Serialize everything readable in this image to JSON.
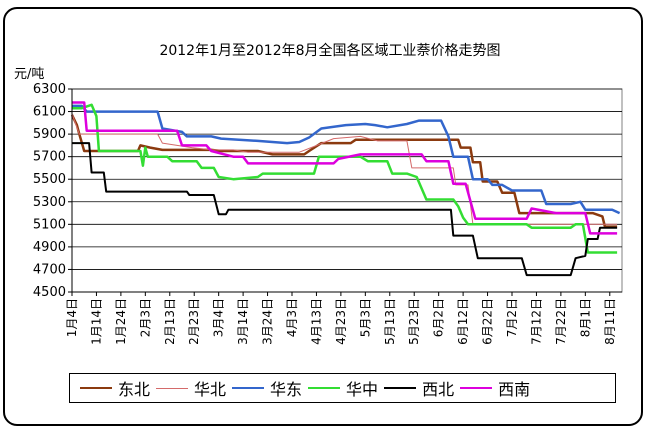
{
  "chart_data": {
    "type": "line",
    "title": "2012年1月至2012年8月全国各区域工业萘价格走势图",
    "ylabel": "元/吨",
    "xlabel": "",
    "ylim": [
      4500,
      6300
    ],
    "yticks": [
      4500,
      4700,
      4900,
      5100,
      5300,
      5500,
      5700,
      5900,
      6100,
      6300
    ],
    "x_start": "2012-01-04",
    "x_end": "2012-08-16",
    "x_tick_labels": [
      "1月4日",
      "1月14日",
      "1月24日",
      "2月3日",
      "2月13日",
      "2月23日",
      "3月4日",
      "3月14日",
      "3月24日",
      "4月3日",
      "4月13日",
      "4月23日",
      "5月3日",
      "5月13日",
      "5月23日",
      "6月2日",
      "6月12日",
      "6月22日",
      "7月2日",
      "7月12日",
      "7月22日",
      "8月1日",
      "8月11日"
    ],
    "grid": "horizontal",
    "legend_position": "bottom",
    "series": [
      {
        "name": "东北",
        "color": "#8B3A0F",
        "width": 2.5,
        "points": [
          [
            "2012-01-04",
            6070
          ],
          [
            "2012-01-06",
            5980
          ],
          [
            "2012-01-07",
            5900
          ],
          [
            "2012-01-09",
            5750
          ],
          [
            "2012-01-31",
            5750
          ],
          [
            "2012-02-01",
            5800
          ],
          [
            "2012-02-05",
            5780
          ],
          [
            "2012-02-10",
            5760
          ],
          [
            "2012-03-01",
            5760
          ],
          [
            "2012-03-05",
            5750
          ],
          [
            "2012-03-20",
            5750
          ],
          [
            "2012-03-26",
            5720
          ],
          [
            "2012-04-08",
            5720
          ],
          [
            "2012-04-10",
            5750
          ],
          [
            "2012-04-15",
            5820
          ],
          [
            "2012-04-27",
            5820
          ],
          [
            "2012-04-29",
            5850
          ],
          [
            "2012-06-10",
            5850
          ],
          [
            "2012-06-11",
            5780
          ],
          [
            "2012-06-15",
            5780
          ],
          [
            "2012-06-16",
            5650
          ],
          [
            "2012-06-19",
            5650
          ],
          [
            "2012-06-20",
            5480
          ],
          [
            "2012-06-26",
            5480
          ],
          [
            "2012-06-28",
            5380
          ],
          [
            "2012-07-01",
            5380
          ],
          [
            "2012-07-03",
            5380
          ],
          [
            "2012-07-05",
            5200
          ],
          [
            "2012-08-04",
            5200
          ],
          [
            "2012-08-08",
            5170
          ],
          [
            "2012-08-09",
            5080
          ],
          [
            "2012-08-14",
            5080
          ]
        ]
      },
      {
        "name": "华北",
        "color": "#D46A6A",
        "width": 1,
        "points": [
          [
            "2012-01-04",
            6080
          ],
          [
            "2012-01-06",
            5960
          ],
          [
            "2012-01-07",
            5900
          ],
          [
            "2012-02-08",
            5900
          ],
          [
            "2012-02-10",
            5820
          ],
          [
            "2012-02-16",
            5800
          ],
          [
            "2012-02-22",
            5780
          ],
          [
            "2012-03-01",
            5760
          ],
          [
            "2012-03-10",
            5760
          ],
          [
            "2012-03-16",
            5740
          ],
          [
            "2012-04-06",
            5740
          ],
          [
            "2012-04-12",
            5790
          ],
          [
            "2012-04-20",
            5860
          ],
          [
            "2012-05-01",
            5880
          ],
          [
            "2012-05-08",
            5840
          ],
          [
            "2012-05-20",
            5840
          ],
          [
            "2012-05-22",
            5600
          ],
          [
            "2012-06-08",
            5600
          ],
          [
            "2012-06-09",
            5450
          ],
          [
            "2012-06-14",
            5450
          ],
          [
            "2012-06-16",
            5100
          ],
          [
            "2012-08-14",
            5100
          ]
        ]
      },
      {
        "name": "华东",
        "color": "#3366CC",
        "width": 2.5,
        "points": [
          [
            "2012-01-04",
            6150
          ],
          [
            "2012-01-08",
            6150
          ],
          [
            "2012-01-10",
            6100
          ],
          [
            "2012-02-08",
            6100
          ],
          [
            "2012-02-10",
            5950
          ],
          [
            "2012-02-18",
            5920
          ],
          [
            "2012-02-20",
            5880
          ],
          [
            "2012-03-01",
            5880
          ],
          [
            "2012-03-05",
            5860
          ],
          [
            "2012-03-20",
            5840
          ],
          [
            "2012-04-01",
            5820
          ],
          [
            "2012-04-06",
            5830
          ],
          [
            "2012-04-10",
            5870
          ],
          [
            "2012-04-15",
            5950
          ],
          [
            "2012-04-25",
            5980
          ],
          [
            "2012-05-03",
            5990
          ],
          [
            "2012-05-07",
            5980
          ],
          [
            "2012-05-12",
            5960
          ],
          [
            "2012-05-20",
            5990
          ],
          [
            "2012-05-25",
            6020
          ],
          [
            "2012-06-03",
            6020
          ],
          [
            "2012-06-06",
            5880
          ],
          [
            "2012-06-08",
            5700
          ],
          [
            "2012-06-14",
            5700
          ],
          [
            "2012-06-16",
            5500
          ],
          [
            "2012-06-22",
            5500
          ],
          [
            "2012-06-24",
            5450
          ],
          [
            "2012-06-28",
            5450
          ],
          [
            "2012-07-02",
            5400
          ],
          [
            "2012-07-14",
            5400
          ],
          [
            "2012-07-16",
            5280
          ],
          [
            "2012-07-26",
            5280
          ],
          [
            "2012-07-30",
            5300
          ],
          [
            "2012-08-01",
            5230
          ],
          [
            "2012-08-12",
            5230
          ],
          [
            "2012-08-15",
            5200
          ]
        ]
      },
      {
        "name": "华中",
        "color": "#33DD33",
        "width": 2.5,
        "points": [
          [
            "2012-01-04",
            6130
          ],
          [
            "2012-01-08",
            6130
          ],
          [
            "2012-01-12",
            6160
          ],
          [
            "2012-01-14",
            6060
          ],
          [
            "2012-01-15",
            5750
          ],
          [
            "2012-02-01",
            5750
          ],
          [
            "2012-02-02",
            5620
          ],
          [
            "2012-02-03",
            5780
          ],
          [
            "2012-02-04",
            5700
          ],
          [
            "2012-02-12",
            5700
          ],
          [
            "2012-02-14",
            5660
          ],
          [
            "2012-02-24",
            5660
          ],
          [
            "2012-02-26",
            5600
          ],
          [
            "2012-03-02",
            5600
          ],
          [
            "2012-03-04",
            5520
          ],
          [
            "2012-03-10",
            5500
          ],
          [
            "2012-03-20",
            5520
          ],
          [
            "2012-03-22",
            5550
          ],
          [
            "2012-04-12",
            5550
          ],
          [
            "2012-04-14",
            5700
          ],
          [
            "2012-05-01",
            5700
          ],
          [
            "2012-05-04",
            5660
          ],
          [
            "2012-05-12",
            5660
          ],
          [
            "2012-05-14",
            5550
          ],
          [
            "2012-05-20",
            5550
          ],
          [
            "2012-05-24",
            5520
          ],
          [
            "2012-05-28",
            5320
          ],
          [
            "2012-06-08",
            5320
          ],
          [
            "2012-06-10",
            5260
          ],
          [
            "2012-06-12",
            5160
          ],
          [
            "2012-06-14",
            5100
          ],
          [
            "2012-07-08",
            5100
          ],
          [
            "2012-07-10",
            5070
          ],
          [
            "2012-07-26",
            5070
          ],
          [
            "2012-07-28",
            5100
          ],
          [
            "2012-07-31",
            5100
          ],
          [
            "2012-08-02",
            4850
          ],
          [
            "2012-08-14",
            4850
          ]
        ]
      },
      {
        "name": "西北",
        "color": "#000000",
        "width": 2,
        "points": [
          [
            "2012-01-04",
            5820
          ],
          [
            "2012-01-11",
            5820
          ],
          [
            "2012-01-12",
            5560
          ],
          [
            "2012-01-17",
            5560
          ],
          [
            "2012-01-18",
            5390
          ],
          [
            "2012-02-20",
            5390
          ],
          [
            "2012-02-21",
            5360
          ],
          [
            "2012-03-02",
            5360
          ],
          [
            "2012-03-04",
            5190
          ],
          [
            "2012-03-07",
            5190
          ],
          [
            "2012-03-08",
            5230
          ],
          [
            "2012-06-07",
            5230
          ],
          [
            "2012-06-08",
            5000
          ],
          [
            "2012-06-16",
            5000
          ],
          [
            "2012-06-18",
            4800
          ],
          [
            "2012-07-06",
            4800
          ],
          [
            "2012-07-08",
            4650
          ],
          [
            "2012-07-26",
            4650
          ],
          [
            "2012-07-28",
            4800
          ],
          [
            "2012-08-01",
            4820
          ],
          [
            "2012-08-02",
            4970
          ],
          [
            "2012-08-06",
            4970
          ],
          [
            "2012-08-07",
            5070
          ],
          [
            "2012-08-14",
            5070
          ]
        ]
      },
      {
        "name": "西南",
        "color": "#DD00DD",
        "width": 2.5,
        "points": [
          [
            "2012-01-04",
            6180
          ],
          [
            "2012-01-09",
            6180
          ],
          [
            "2012-01-10",
            5930
          ],
          [
            "2012-02-16",
            5930
          ],
          [
            "2012-02-18",
            5800
          ],
          [
            "2012-02-28",
            5800
          ],
          [
            "2012-03-01",
            5750
          ],
          [
            "2012-03-10",
            5700
          ],
          [
            "2012-03-14",
            5700
          ],
          [
            "2012-03-16",
            5640
          ],
          [
            "2012-04-20",
            5640
          ],
          [
            "2012-04-22",
            5680
          ],
          [
            "2012-05-01",
            5720
          ],
          [
            "2012-05-26",
            5720
          ],
          [
            "2012-05-28",
            5660
          ],
          [
            "2012-06-06",
            5660
          ],
          [
            "2012-06-08",
            5460
          ],
          [
            "2012-06-13",
            5460
          ],
          [
            "2012-06-17",
            5150
          ],
          [
            "2012-07-08",
            5150
          ],
          [
            "2012-07-10",
            5240
          ],
          [
            "2012-07-20",
            5200
          ],
          [
            "2012-08-01",
            5200
          ],
          [
            "2012-08-03",
            5020
          ],
          [
            "2012-08-14",
            5020
          ]
        ]
      }
    ]
  }
}
